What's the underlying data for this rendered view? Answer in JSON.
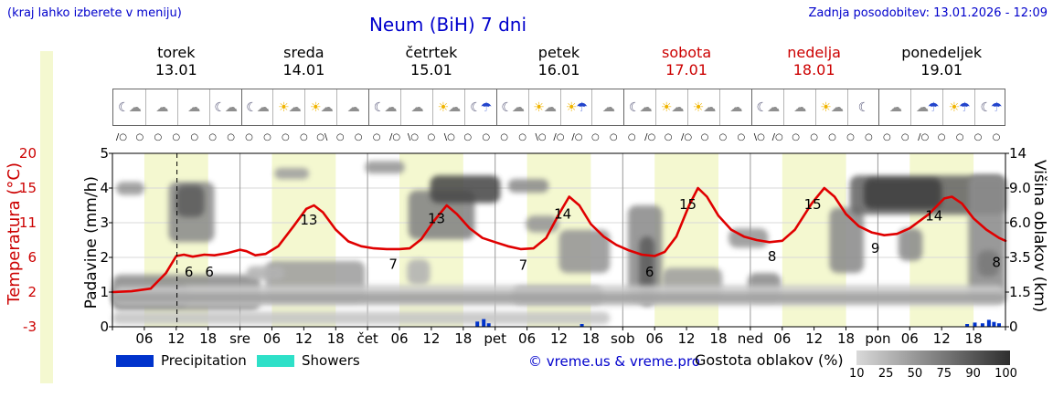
{
  "header": {
    "hint": "(kraj lahko izberete v meniju)",
    "title": "Neum (BiH) 7 dni",
    "updated": "Zadnja posodobitev: 13.01.2026 - 12:09"
  },
  "days": [
    {
      "name": "torek",
      "date": "13.01",
      "weekend": false,
      "icons": [
        "☾☁",
        "☁",
        "☁",
        "☾☁"
      ]
    },
    {
      "name": "sreda",
      "date": "14.01",
      "weekend": false,
      "icons": [
        "☾☁",
        "☀☁",
        "☀☁",
        "☁"
      ]
    },
    {
      "name": "četrtek",
      "date": "15.01",
      "weekend": false,
      "icons": [
        "☾☁",
        "☁",
        "☀☁",
        "☾☂"
      ]
    },
    {
      "name": "petek",
      "date": "16.01",
      "weekend": false,
      "icons": [
        "☾☁",
        "☀☁",
        "☀☂",
        "☁"
      ]
    },
    {
      "name": "sobota",
      "date": "17.01",
      "weekend": true,
      "icons": [
        "☾☁",
        "☀☁",
        "☀☁",
        "☁"
      ]
    },
    {
      "name": "nedelja",
      "date": "18.01",
      "weekend": true,
      "icons": [
        "☾☁",
        "☁",
        "☀☁",
        "☾"
      ]
    },
    {
      "name": "ponedeljek",
      "date": "19.01",
      "weekend": false,
      "icons": [
        "☁",
        "☁☂",
        "☀☂",
        "☾☂"
      ]
    }
  ],
  "wind": [
    "/○",
    "○",
    "○",
    "○",
    "○",
    "○",
    "○",
    "○",
    "○",
    "○",
    "○",
    "○\\",
    "○",
    "○",
    "○",
    "/○",
    "\\○",
    "○",
    "\\○",
    "○",
    "○",
    "○",
    "○",
    "\\○",
    "/○",
    "/○",
    "○",
    "○",
    "○",
    "/○",
    "○",
    "/○",
    "○",
    "○",
    "○",
    "\\○",
    "/○",
    "○",
    "○",
    "○",
    "○",
    "○",
    "○",
    "○",
    "/○",
    "○",
    "○",
    "○",
    "○"
  ],
  "axes": {
    "temp_label": "Temperatura (°C)",
    "temp_ticks": [
      "20",
      "15",
      "11",
      "6",
      "2",
      "-3"
    ],
    "precip_label": "Padavine (mm/h)",
    "precip_ticks": [
      "5",
      "4",
      "3",
      "2",
      "1",
      "0"
    ],
    "cloud_label": "Višina oblakov (km)",
    "cloud_ticks": [
      "14",
      "9.0",
      "6.0",
      "3.5",
      "1.5",
      "0"
    ]
  },
  "xaxis": {
    "hours": [
      "06",
      "12",
      "18"
    ],
    "day_abbrevs": [
      "sre",
      "čet",
      "pet",
      "sob",
      "ned",
      "pon"
    ]
  },
  "legend": {
    "precipitation": "Precipitation",
    "showers": "Showers",
    "copyright": "© vreme.us & vreme.pro",
    "cloud_density": "Gostota oblakov (%)",
    "density_ticks": [
      "10",
      "25",
      "50",
      "75",
      "90",
      "100"
    ],
    "gradient_from": "#d9d9d9",
    "gradient_to": "#2e2e2e"
  },
  "chart_data": {
    "type": "line",
    "title": "Neum (BiH) 7 dni",
    "x_axis": {
      "unit": "days",
      "range": [
        0,
        7
      ]
    },
    "temperature": {
      "name": "Temperatura",
      "unit": "°C",
      "color": "#e00000",
      "axis_ticks": [
        20,
        15,
        11,
        6,
        2,
        -3
      ],
      "points": [
        [
          0,
          2.0
        ],
        [
          0.15,
          2.1
        ],
        [
          0.3,
          2.4
        ],
        [
          0.42,
          4.2
        ],
        [
          0.5,
          6.2
        ],
        [
          0.56,
          6.4
        ],
        [
          0.63,
          6.1
        ],
        [
          0.72,
          6.4
        ],
        [
          0.8,
          6.3
        ],
        [
          0.9,
          6.6
        ],
        [
          1.0,
          7.1
        ],
        [
          1.05,
          6.9
        ],
        [
          1.12,
          6.3
        ],
        [
          1.2,
          6.5
        ],
        [
          1.3,
          7.6
        ],
        [
          1.42,
          10.5
        ],
        [
          1.52,
          12.6
        ],
        [
          1.58,
          13.0
        ],
        [
          1.65,
          12.2
        ],
        [
          1.75,
          10.0
        ],
        [
          1.85,
          8.3
        ],
        [
          1.95,
          7.6
        ],
        [
          2.05,
          7.3
        ],
        [
          2.15,
          7.2
        ],
        [
          2.25,
          7.2
        ],
        [
          2.33,
          7.3
        ],
        [
          2.42,
          8.6
        ],
        [
          2.52,
          11.2
        ],
        [
          2.62,
          13.0
        ],
        [
          2.7,
          12.0
        ],
        [
          2.8,
          10.2
        ],
        [
          2.9,
          8.8
        ],
        [
          3.0,
          8.2
        ],
        [
          3.1,
          7.6
        ],
        [
          3.2,
          7.2
        ],
        [
          3.3,
          7.3
        ],
        [
          3.4,
          8.8
        ],
        [
          3.5,
          12.0
        ],
        [
          3.58,
          14.0
        ],
        [
          3.66,
          13.0
        ],
        [
          3.75,
          10.8
        ],
        [
          3.85,
          9.0
        ],
        [
          3.95,
          7.8
        ],
        [
          4.05,
          7.0
        ],
        [
          4.15,
          6.4
        ],
        [
          4.25,
          6.2
        ],
        [
          4.33,
          6.8
        ],
        [
          4.42,
          9.0
        ],
        [
          4.52,
          13.0
        ],
        [
          4.59,
          15.0
        ],
        [
          4.66,
          14.0
        ],
        [
          4.75,
          11.8
        ],
        [
          4.85,
          10.0
        ],
        [
          4.95,
          9.0
        ],
        [
          5.05,
          8.5
        ],
        [
          5.15,
          8.2
        ],
        [
          5.25,
          8.4
        ],
        [
          5.35,
          10.0
        ],
        [
          5.48,
          13.2
        ],
        [
          5.58,
          15.0
        ],
        [
          5.66,
          14.0
        ],
        [
          5.75,
          12.0
        ],
        [
          5.85,
          10.5
        ],
        [
          5.95,
          9.6
        ],
        [
          6.05,
          9.2
        ],
        [
          6.15,
          9.4
        ],
        [
          6.25,
          10.2
        ],
        [
          6.4,
          12.0
        ],
        [
          6.52,
          13.8
        ],
        [
          6.58,
          14.0
        ],
        [
          6.66,
          13.2
        ],
        [
          6.75,
          11.5
        ],
        [
          6.85,
          10.0
        ],
        [
          6.95,
          8.8
        ],
        [
          7.0,
          8.4
        ]
      ]
    },
    "temp_annotations": [
      {
        "f": 0.6,
        "t": 4.3,
        "s": "6"
      },
      {
        "f": 0.76,
        "t": 4.3,
        "s": "6"
      },
      {
        "f": 1.54,
        "t": 11.3,
        "s": "13"
      },
      {
        "f": 2.2,
        "t": 5.2,
        "s": "7"
      },
      {
        "f": 2.54,
        "t": 11.5,
        "s": "13"
      },
      {
        "f": 3.22,
        "t": 5.1,
        "s": "7"
      },
      {
        "f": 3.53,
        "t": 12.0,
        "s": "14"
      },
      {
        "f": 4.21,
        "t": 4.3,
        "s": "6"
      },
      {
        "f": 4.51,
        "t": 13.1,
        "s": "15"
      },
      {
        "f": 5.17,
        "t": 6.1,
        "s": "8"
      },
      {
        "f": 5.49,
        "t": 13.1,
        "s": "15"
      },
      {
        "f": 5.98,
        "t": 7.3,
        "s": "9"
      },
      {
        "f": 6.44,
        "t": 11.8,
        "s": "14"
      },
      {
        "f": 6.93,
        "t": 5.4,
        "s": "8"
      }
    ],
    "precipitation": {
      "unit": "mm/h",
      "axis_ticks": [
        5,
        4,
        3,
        2,
        1,
        0
      ],
      "colors": {
        "rain": "#0033cc",
        "showers": "#2ee0c8"
      },
      "bars": [
        {
          "f": 2.86,
          "mm": 0.15,
          "kind": "rain"
        },
        {
          "f": 2.91,
          "mm": 0.22,
          "kind": "rain"
        },
        {
          "f": 2.95,
          "mm": 0.1,
          "kind": "rain"
        },
        {
          "f": 3.68,
          "mm": 0.08,
          "kind": "rain"
        },
        {
          "f": 6.7,
          "mm": 0.08,
          "kind": "rain"
        },
        {
          "f": 6.76,
          "mm": 0.12,
          "kind": "rain"
        },
        {
          "f": 6.82,
          "mm": 0.1,
          "kind": "rain"
        },
        {
          "f": 6.87,
          "mm": 0.2,
          "kind": "rain"
        },
        {
          "f": 6.91,
          "mm": 0.14,
          "kind": "rain"
        },
        {
          "f": 6.95,
          "mm": 0.1,
          "kind": "rain"
        }
      ]
    },
    "cloud_cover": {
      "unit": "km",
      "axis_ticks": [
        14,
        9.0,
        6.0,
        3.5,
        1.5,
        0
      ],
      "areas": [
        [
          0.03,
          0.25,
          8.4,
          9.9,
          45
        ],
        [
          0.44,
          0.8,
          4.6,
          9.9,
          50
        ],
        [
          0.5,
          0.72,
          6.5,
          9.4,
          75
        ],
        [
          0.0,
          1.16,
          0.7,
          2.5,
          50
        ],
        [
          0.0,
          0.6,
          0.9,
          1.9,
          60
        ],
        [
          1.27,
          1.54,
          10.3,
          11.9,
          40
        ],
        [
          1.2,
          1.98,
          1.1,
          3.3,
          40
        ],
        [
          1.05,
          1.35,
          2.2,
          3.0,
          30
        ],
        [
          1.98,
          2.29,
          11.1,
          12.9,
          45
        ],
        [
          2.32,
          2.84,
          4.8,
          8.8,
          55
        ],
        [
          2.49,
          3.04,
          7.7,
          10.8,
          85
        ],
        [
          2.31,
          2.49,
          1.9,
          3.4,
          30
        ],
        [
          3.1,
          3.42,
          8.6,
          10.3,
          50
        ],
        [
          3.24,
          3.5,
          5.3,
          6.6,
          45
        ],
        [
          3.13,
          3.85,
          1.0,
          1.8,
          65
        ],
        [
          3.5,
          3.9,
          2.6,
          5.5,
          45
        ],
        [
          4.04,
          4.31,
          1.1,
          7.5,
          50
        ],
        [
          4.13,
          4.25,
          0.9,
          5.0,
          75
        ],
        [
          4.31,
          4.78,
          1.2,
          2.9,
          40
        ],
        [
          4.83,
          5.14,
          4.2,
          5.6,
          45
        ],
        [
          4.98,
          5.24,
          1.1,
          2.6,
          50
        ],
        [
          5.62,
          5.89,
          2.6,
          7.3,
          50
        ],
        [
          5.78,
          7.0,
          6.7,
          10.8,
          70
        ],
        [
          5.89,
          6.5,
          7.2,
          10.4,
          90
        ],
        [
          6.16,
          6.35,
          3.3,
          5.6,
          50
        ],
        [
          6.71,
          7.0,
          1.1,
          10.9,
          50
        ],
        [
          6.78,
          6.95,
          2.4,
          4.0,
          60
        ],
        [
          0.0,
          7.0,
          0.9,
          1.9,
          18
        ],
        [
          0.0,
          7.0,
          1.05,
          1.45,
          40
        ],
        [
          0.0,
          3.9,
          0.1,
          0.65,
          20
        ]
      ]
    },
    "current_time": {
      "f": 0.506,
      "label": "13.01.2026 - 12:09"
    },
    "day_bands": {
      "from_hour": 6,
      "to_hour": 18,
      "color": "#f4f8d0"
    }
  }
}
